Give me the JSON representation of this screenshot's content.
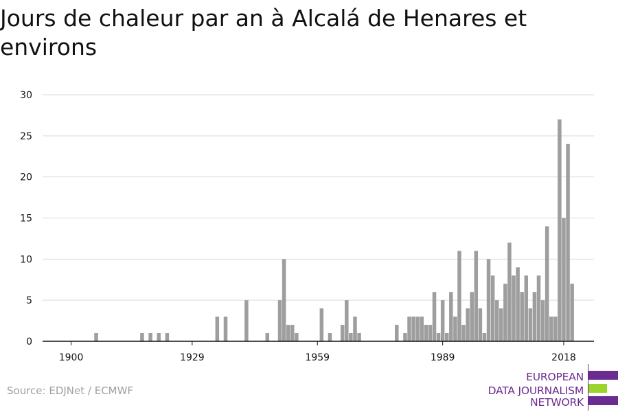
{
  "title": "Jours de chaleur par an à Alcalá de Henares et environs",
  "source": "Source: EDJNet / ECMWF",
  "brand": {
    "lines": [
      "EUROPEAN",
      "DATA JOURNALISM",
      "NETWORK"
    ],
    "colors": {
      "purple": "#6b2c91",
      "green": "#9bd42b"
    }
  },
  "chart_data": {
    "type": "bar",
    "title": "Jours de chaleur par an à Alcalá de Henares et environs",
    "xlabel": "",
    "ylabel": "",
    "x_start": 1900,
    "x_end": 2020,
    "values": [
      0,
      0,
      0,
      0,
      0,
      0,
      1,
      0,
      0,
      0,
      0,
      0,
      0,
      0,
      0,
      0,
      0,
      1,
      0,
      1,
      0,
      1,
      0,
      1,
      0,
      0,
      0,
      0,
      0,
      0,
      0,
      0,
      0,
      0,
      0,
      3,
      0,
      3,
      0,
      0,
      0,
      0,
      5,
      0,
      0,
      0,
      0,
      1,
      0,
      0,
      5,
      10,
      2,
      2,
      1,
      0,
      0,
      0,
      0,
      0,
      4,
      0,
      1,
      0,
      0,
      2,
      5,
      1,
      3,
      1,
      0,
      0,
      0,
      0,
      0,
      0,
      0,
      0,
      2,
      0,
      1,
      3,
      3,
      3,
      3,
      2,
      2,
      6,
      1,
      5,
      1,
      6,
      3,
      11,
      2,
      4,
      6,
      11,
      4,
      1,
      10,
      8,
      5,
      4,
      7,
      12,
      8,
      9,
      6,
      8,
      4,
      6,
      8,
      5,
      14,
      3,
      3,
      27,
      15,
      24,
      7
    ],
    "xticks": [
      1900,
      1929,
      1959,
      1989,
      2018
    ],
    "yticks": [
      0,
      5,
      10,
      15,
      20,
      25,
      30
    ],
    "ylim": [
      0,
      30
    ],
    "bar_color": "#9e9e9e",
    "grid_color": "#d9d9d9",
    "grid": true,
    "legend": false
  }
}
